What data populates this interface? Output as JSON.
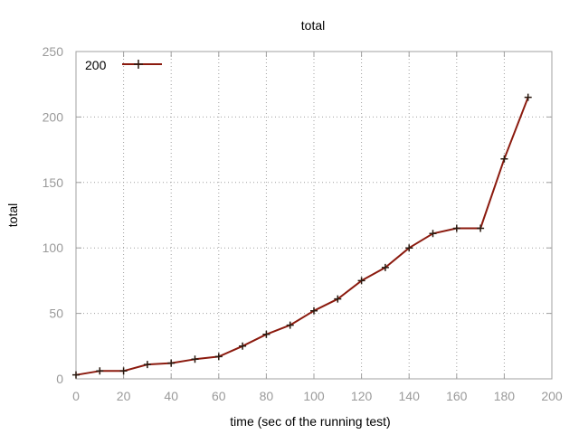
{
  "chart_data": {
    "type": "line",
    "title": "total",
    "xlabel": "time (sec of the running test)",
    "ylabel": "total",
    "xlim": [
      0,
      200
    ],
    "ylim": [
      0,
      250
    ],
    "xticks": [
      "0",
      "20",
      "40",
      "60",
      "80",
      "100",
      "120",
      "140",
      "160",
      "180",
      "200"
    ],
    "yticks": [
      "0",
      "50",
      "100",
      "150",
      "200",
      "250"
    ],
    "grid": true,
    "legend_position": "top-left",
    "series": [
      {
        "name": "200",
        "color": "#8b1a0e",
        "marker": "plus",
        "x": [
          0,
          10,
          20,
          30,
          40,
          50,
          60,
          70,
          80,
          90,
          100,
          110,
          120,
          130,
          140,
          150,
          160,
          170,
          180,
          190
        ],
        "y": [
          3,
          6,
          6,
          11,
          12,
          15,
          17,
          25,
          34,
          41,
          52,
          61,
          75,
          85,
          100,
          111,
          115,
          115,
          168,
          215
        ]
      }
    ]
  }
}
